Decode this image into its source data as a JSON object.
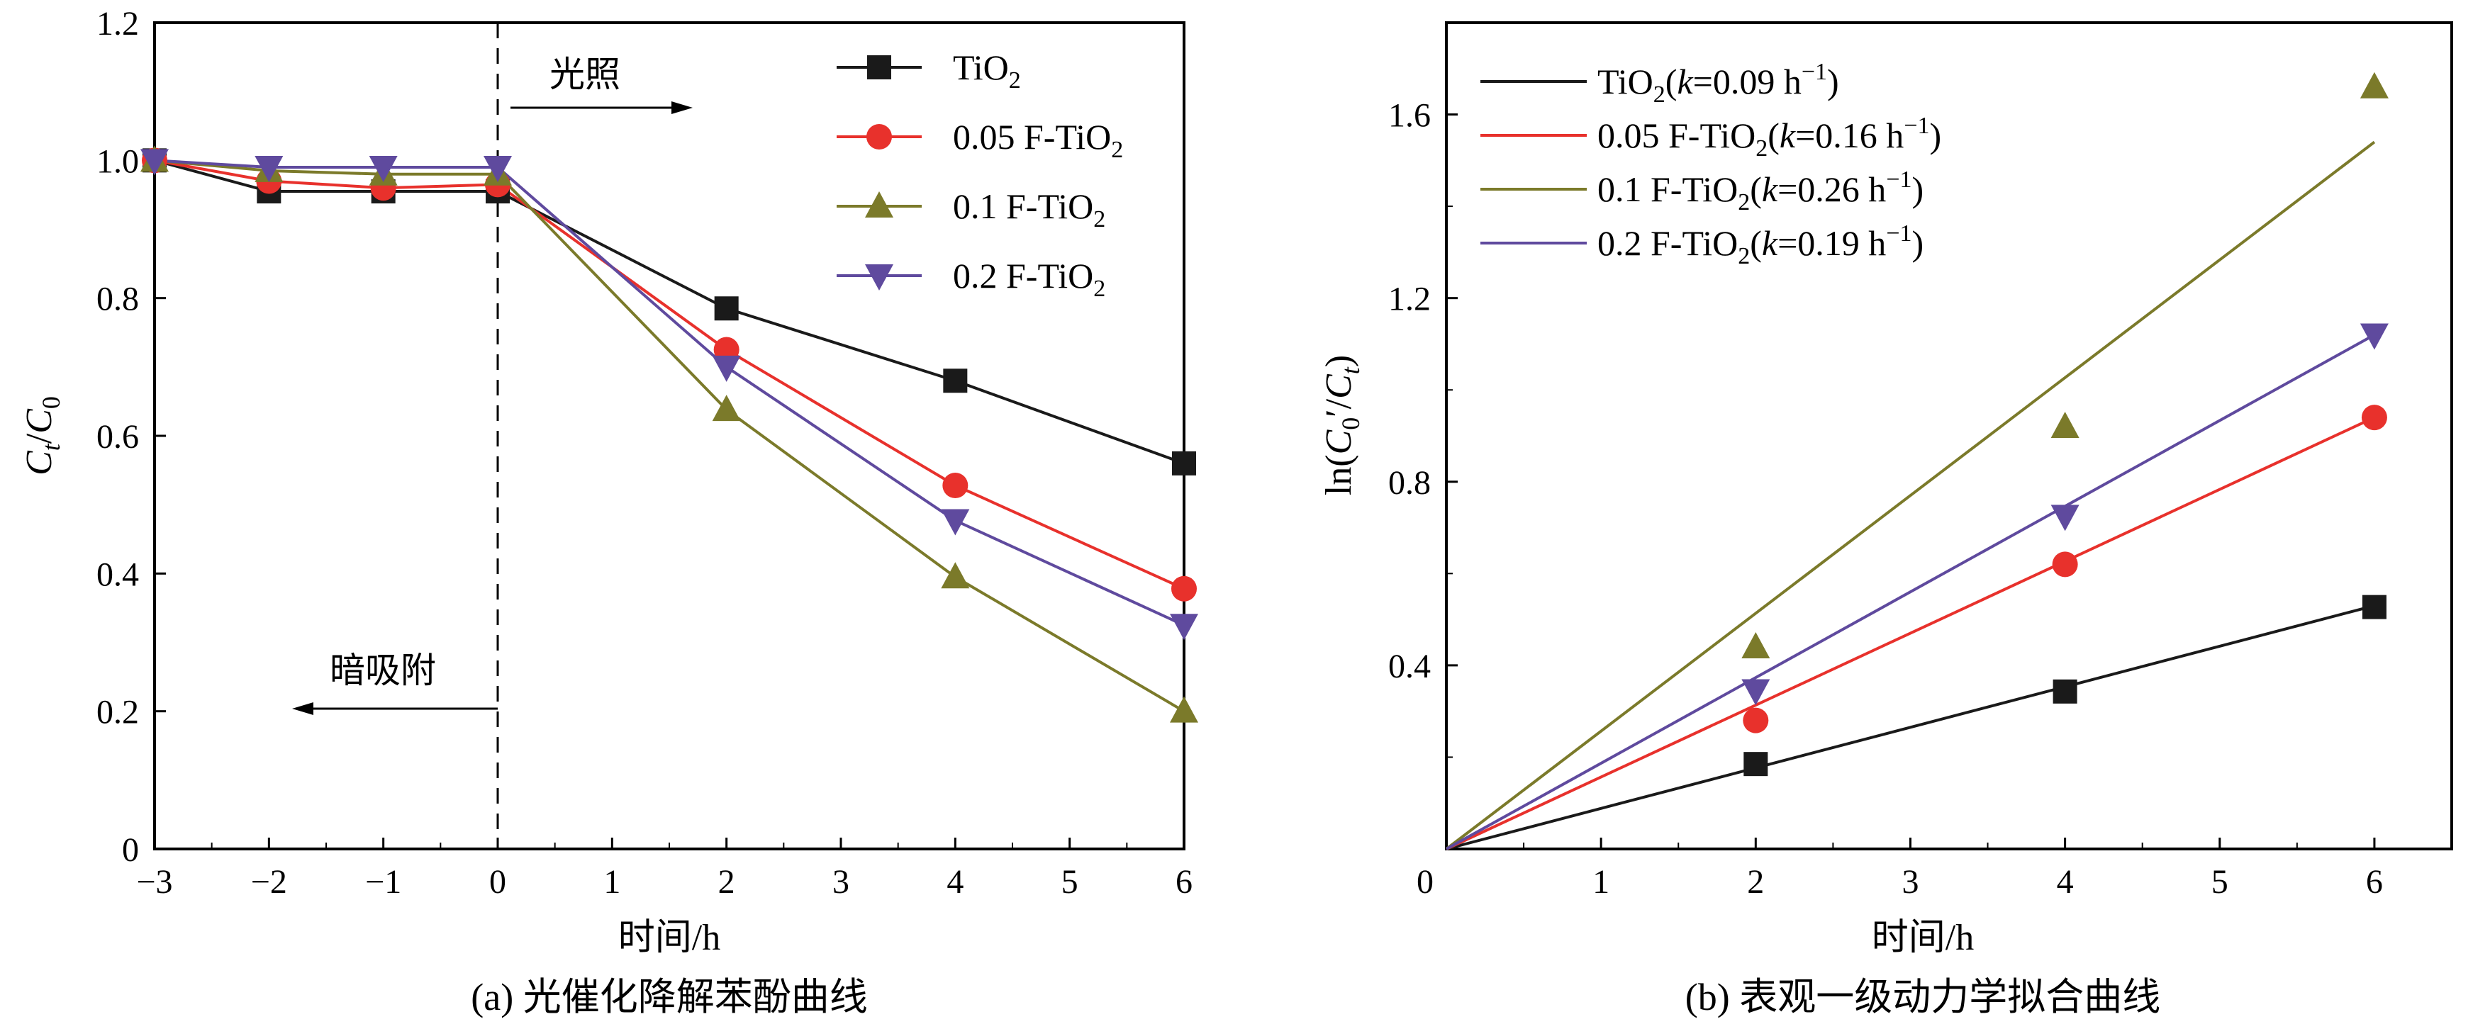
{
  "colors": {
    "TiO2": "#1a1a1a",
    "F005": "#e8312c",
    "F01": "#7b7a2a",
    "F02": "#5f4a9e"
  },
  "chart_data": [
    {
      "type": "line",
      "panel": "a",
      "caption": "(a) 光催化降解苯酚曲线",
      "xlabel": "时间/h",
      "ylabel": "Ct/C0",
      "xlim": [
        -3,
        6
      ],
      "ylim": [
        0,
        1.2
      ],
      "xticks": [
        -3,
        -2,
        -1,
        0,
        1,
        2,
        3,
        4,
        5,
        6
      ],
      "xtick_labels": [
        "−3",
        "−2",
        "−1",
        "0",
        "1",
        "2",
        "3",
        "4",
        "5",
        "6"
      ],
      "yticks": [
        0,
        0.2,
        0.4,
        0.6,
        0.8,
        1.0,
        1.2
      ],
      "ytick_labels": [
        "0",
        "0.2",
        "0.4",
        "0.6",
        "0.8",
        "1.0",
        "1.2"
      ],
      "annotations": {
        "light": "光照",
        "dark": "暗吸附"
      },
      "divider_x": 0,
      "legend_position": "top-right",
      "series": [
        {
          "key": "TiO2",
          "name": "TiO",
          "sub": "2",
          "marker": "square",
          "x": [
            -3,
            -2,
            -1,
            0,
            2,
            4,
            6
          ],
          "y": [
            1.0,
            0.955,
            0.955,
            0.955,
            0.785,
            0.68,
            0.56
          ]
        },
        {
          "key": "F005",
          "name": "0.05 F-TiO",
          "sub": "2",
          "marker": "circle",
          "x": [
            -3,
            -2,
            -1,
            0,
            2,
            4,
            6
          ],
          "y": [
            1.0,
            0.97,
            0.96,
            0.965,
            0.725,
            0.528,
            0.378
          ]
        },
        {
          "key": "F01",
          "name": "0.1 F-TiO",
          "sub": "2",
          "marker": "triangle-up",
          "x": [
            -3,
            -2,
            -1,
            0,
            2,
            4,
            6
          ],
          "y": [
            1.0,
            0.985,
            0.98,
            0.98,
            0.638,
            0.395,
            0.2
          ]
        },
        {
          "key": "F02",
          "name": "0.2 F-TiO",
          "sub": "2",
          "marker": "triangle-down",
          "x": [
            -3,
            -2,
            -1,
            0,
            2,
            4,
            6
          ],
          "y": [
            1.0,
            0.99,
            0.99,
            0.99,
            0.7,
            0.477,
            0.325
          ]
        }
      ]
    },
    {
      "type": "scatter",
      "panel": "b",
      "caption": "(b) 表观一级动力学拟合曲线",
      "xlabel": "时间/h",
      "ylabel": "ln(C0′/Ct)",
      "xlim": [
        0,
        6.5
      ],
      "ylim": [
        0,
        1.8
      ],
      "xticks": [
        0,
        1,
        2,
        3,
        4,
        5,
        6
      ],
      "xtick_labels": [
        "0",
        "1",
        "2",
        "3",
        "4",
        "5",
        "6"
      ],
      "yticks": [
        0.4,
        0.8,
        1.2,
        1.6
      ],
      "ytick_labels": [
        "0.4",
        "0.8",
        "1.2",
        "1.6"
      ],
      "legend_position": "top-left",
      "series": [
        {
          "key": "TiO2",
          "name": "TiO",
          "sub": "2",
          "k_label": "(k=0.09 h",
          "marker": "square",
          "fit_end_y": 0.53,
          "x": [
            2,
            4,
            6
          ],
          "y": [
            0.185,
            0.343,
            0.527
          ]
        },
        {
          "key": "F005",
          "name": "0.05 F-TiO",
          "sub": "2",
          "k_label": "(k=0.16 h",
          "marker": "circle",
          "fit_end_y": 0.94,
          "x": [
            2,
            4,
            6
          ],
          "y": [
            0.28,
            0.62,
            0.94
          ]
        },
        {
          "key": "F01",
          "name": "0.1 F-TiO",
          "sub": "2",
          "k_label": "(k=0.26 h",
          "marker": "triangle-up",
          "fit_end_y": 1.54,
          "x": [
            2,
            4,
            6
          ],
          "y": [
            0.44,
            0.92,
            1.66
          ]
        },
        {
          "key": "F02",
          "name": "0.2 F-TiO",
          "sub": "2",
          "k_label": "(k=0.19 h",
          "marker": "triangle-down",
          "fit_end_y": 1.12,
          "x": [
            2,
            4,
            6
          ],
          "y": [
            0.345,
            0.725,
            1.12
          ]
        }
      ],
      "k_unit_sup": "−1",
      "k_close": ")"
    }
  ]
}
